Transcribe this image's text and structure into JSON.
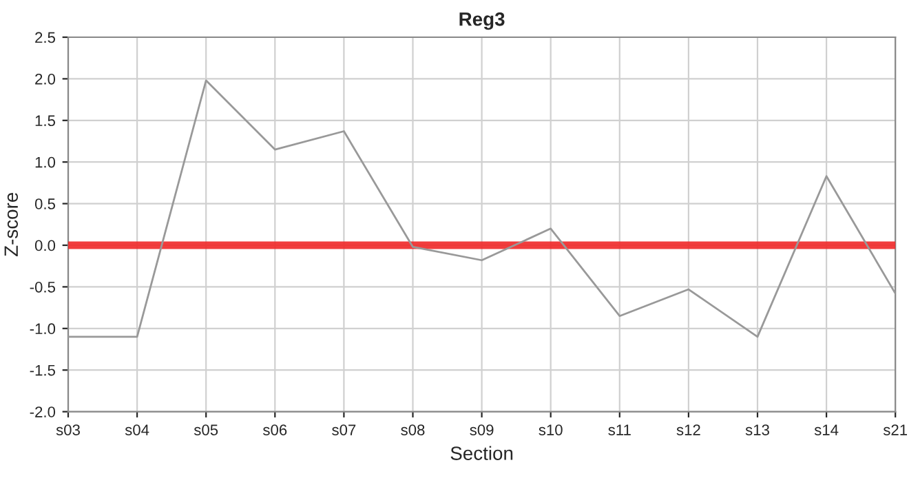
{
  "chart_data": {
    "type": "line",
    "title": "Reg3",
    "xlabel": "Section",
    "ylabel": "Z-score",
    "categories": [
      "s03",
      "s04",
      "s05",
      "s06",
      "s07",
      "s08",
      "s09",
      "s10",
      "s11",
      "s12",
      "s13",
      "s14",
      "s21"
    ],
    "series": [
      {
        "color": "#999999",
        "values": [
          -1.1,
          -1.1,
          1.98,
          1.15,
          1.37,
          -0.02,
          -0.18,
          0.2,
          -0.85,
          -0.53,
          -1.1,
          0.83,
          -0.58
        ]
      }
    ],
    "ylim": [
      -2.0,
      2.5
    ],
    "yticks": [
      {
        "value": -2.0,
        "label": "-2.0"
      },
      {
        "value": -1.5,
        "label": "-1.5"
      },
      {
        "value": -1.0,
        "label": "-1.0"
      },
      {
        "value": -0.5,
        "label": "-0.5"
      },
      {
        "value": 0.0,
        "label": "0.0"
      },
      {
        "value": 0.5,
        "label": "0.5"
      },
      {
        "value": 1.0,
        "label": "1.0"
      },
      {
        "value": 1.5,
        "label": "1.5"
      },
      {
        "value": 2.0,
        "label": "2.0"
      },
      {
        "value": 2.5,
        "label": "2.5"
      }
    ],
    "ref_lines": [
      {
        "axis": "y",
        "value": 0,
        "color": "#f02828"
      }
    ],
    "grid": true,
    "legend": false
  }
}
